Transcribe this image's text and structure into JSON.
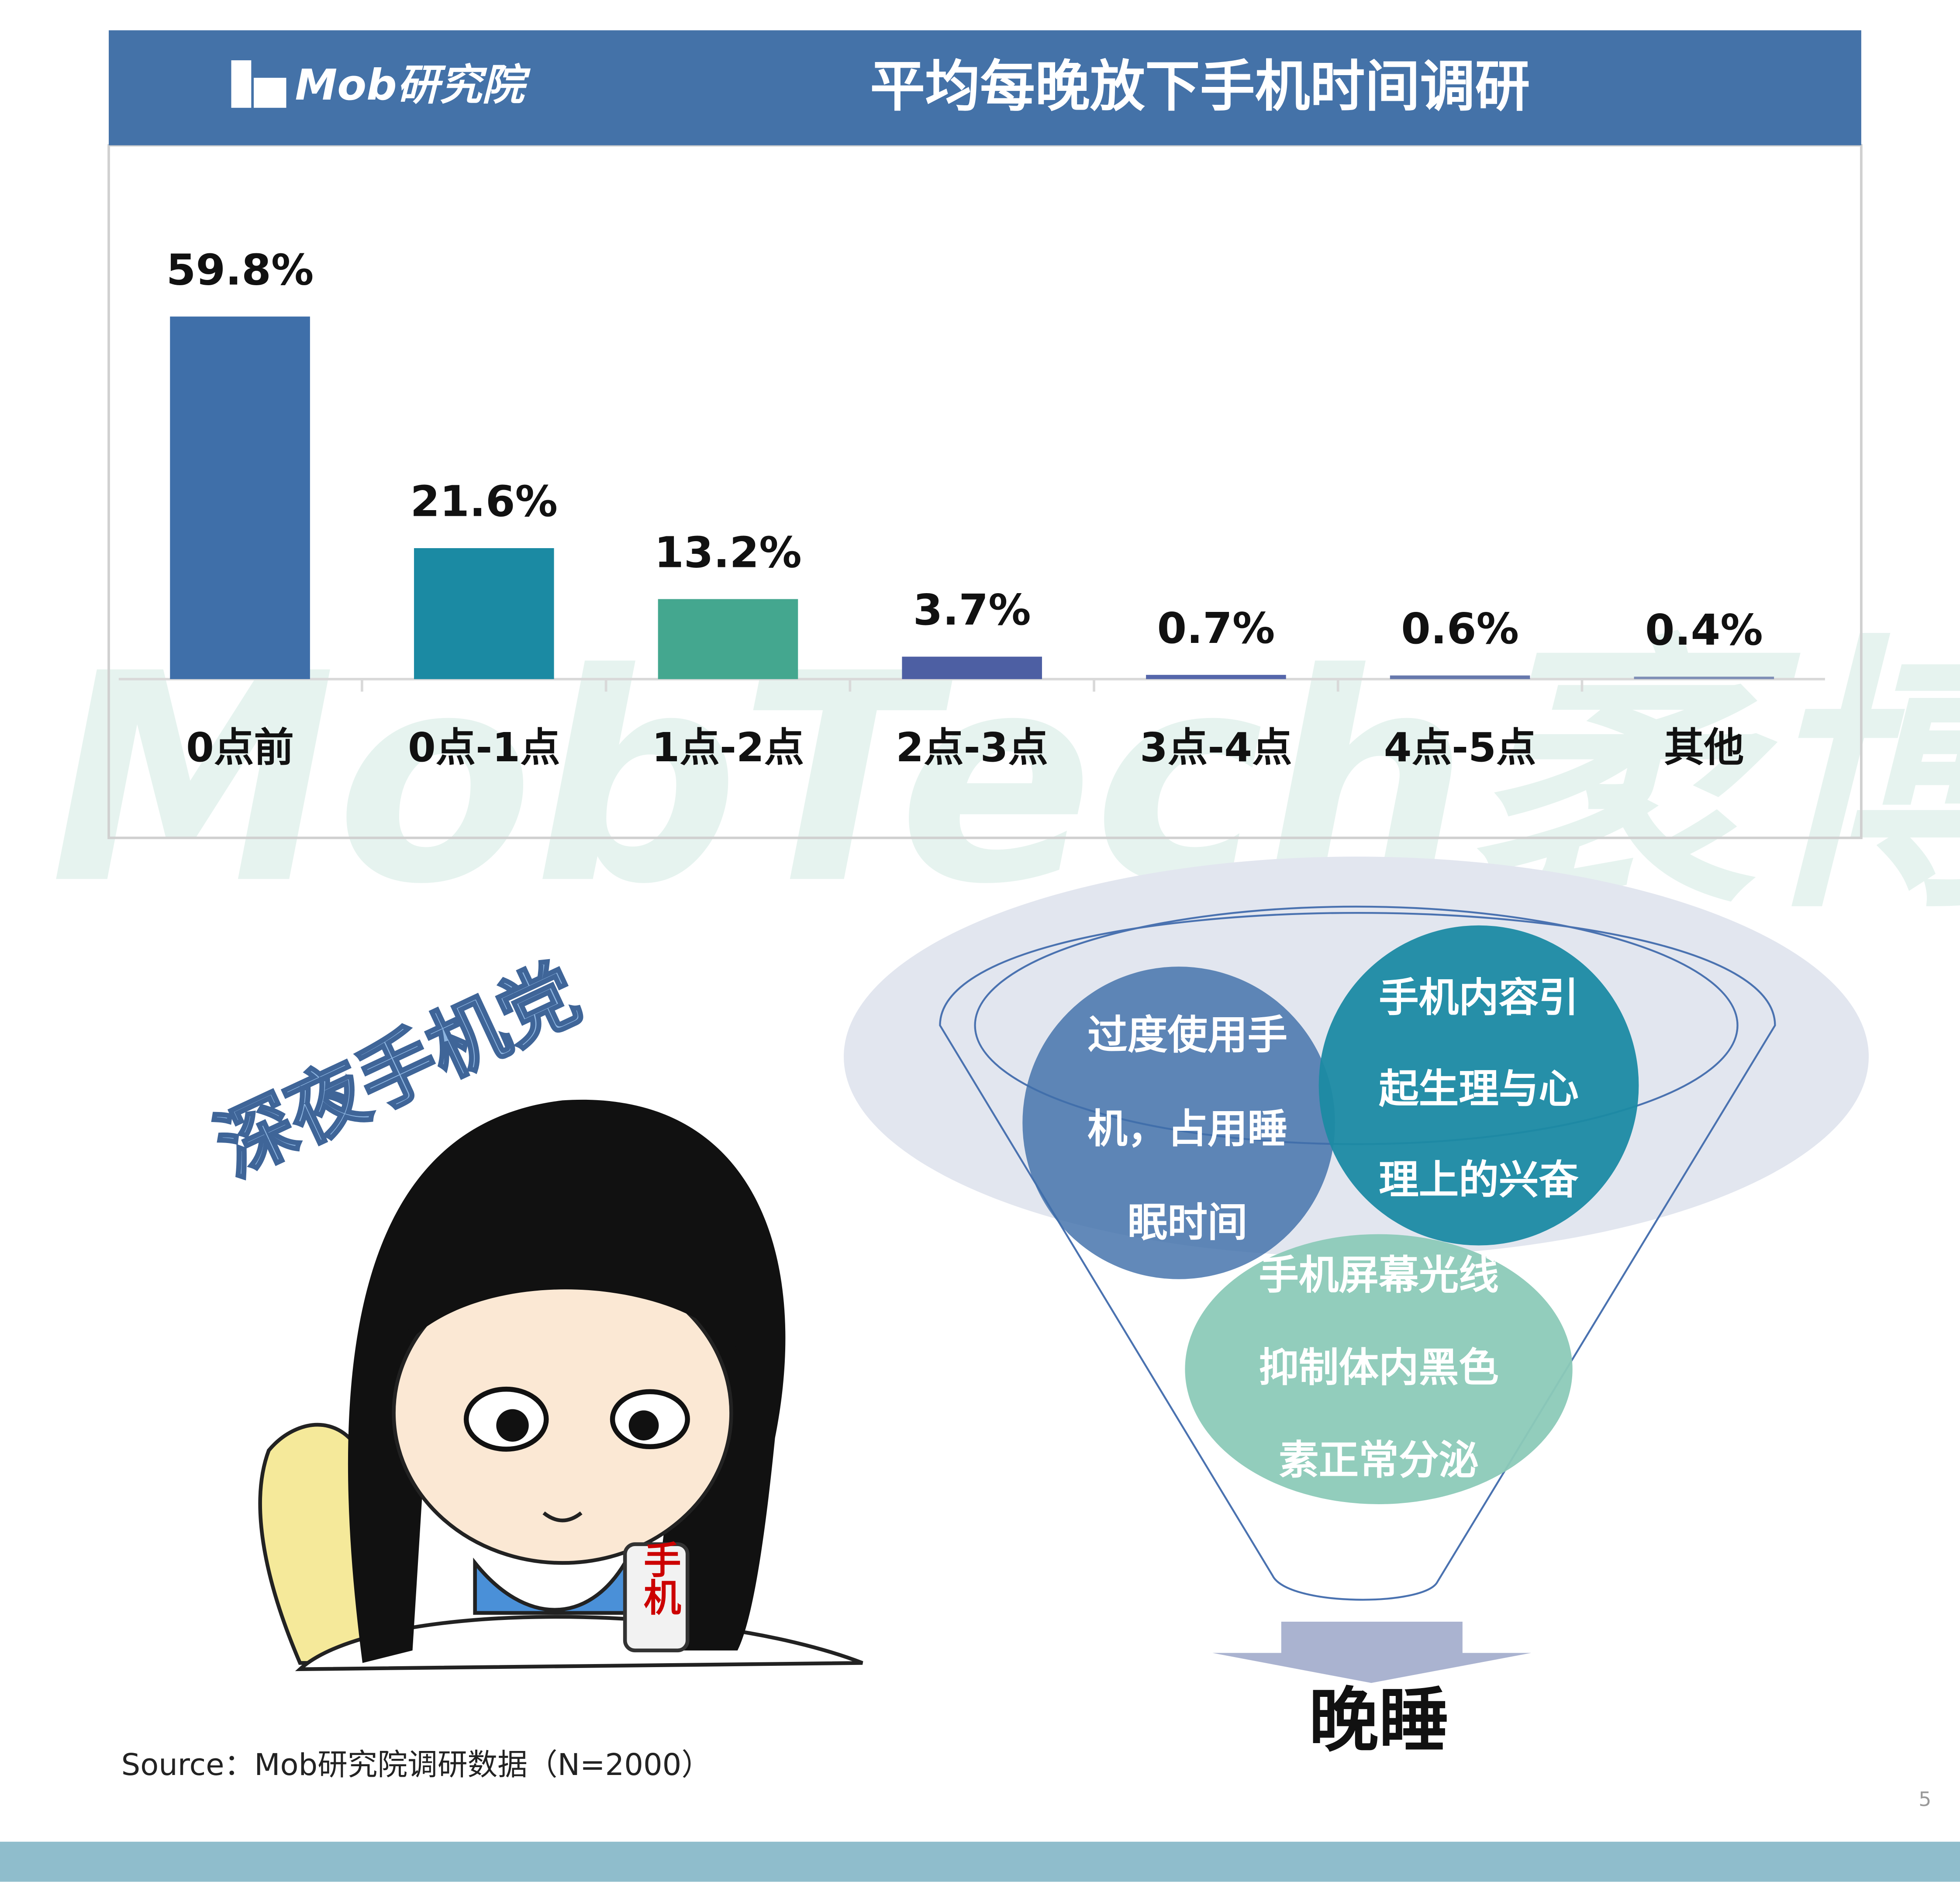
{
  "header": {
    "logo": "Mob研究院",
    "title": "平均每晚放下手机时间调研"
  },
  "watermark": "MobTech袤博",
  "chart_data": {
    "type": "bar",
    "categories": [
      "0点前",
      "0点-1点",
      "1点-2点",
      "2点-3点",
      "3点-4点",
      "4点-5点",
      "其他"
    ],
    "values": [
      59.8,
      21.6,
      13.2,
      3.7,
      0.7,
      0.6,
      0.4
    ],
    "value_labels": [
      "59.8%",
      "21.6%",
      "13.2%",
      "3.7%",
      "0.7%",
      "0.6%",
      "0.4%"
    ],
    "colors": [
      "#3f6fa9",
      "#1b8aa3",
      "#44a78f",
      "#4d5fa3",
      "#5566aa",
      "#6678ac",
      "#7d8db5"
    ]
  },
  "illustration": {
    "caption": "深夜手机党",
    "phone_label": "手机"
  },
  "funnel": {
    "circles": [
      {
        "lines": [
          "过度使用手",
          "机，占用睡",
          "眠时间"
        ]
      },
      {
        "lines": [
          "手机内容引",
          "起生理与心",
          "理上的兴奋"
        ]
      },
      {
        "lines": [
          "手机屏幕光线",
          "抑制体内黑色",
          "素正常分泌"
        ]
      }
    ],
    "result": "晚睡"
  },
  "source": "Source：Mob研究院调研数据（N=2000）",
  "page_number": "5"
}
